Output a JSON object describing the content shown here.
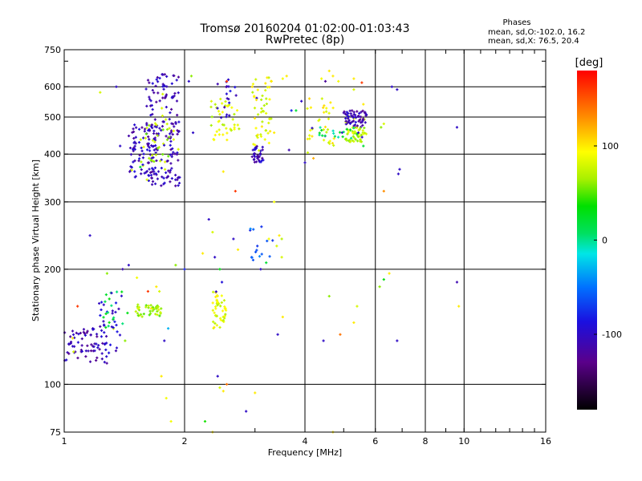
{
  "chart_data": {
    "type": "scatter",
    "title": "Tromsø 20160204 01:02:00-01:03:43",
    "subtitle": "RwPretec (8p)",
    "xlabel": "Frequency [MHz]",
    "ylabel": "Stationary phase Virtual Height [km]",
    "x_scale": "log",
    "y_scale": "log",
    "xlim": [
      1,
      16
    ],
    "ylim": [
      75,
      750
    ],
    "x_ticks": [
      1,
      2,
      4,
      6,
      8,
      10,
      16
    ],
    "x_tick_labels": [
      "1",
      "2",
      "4",
      "6",
      "8",
      "10",
      "16"
    ],
    "y_ticks": [
      75,
      100,
      200,
      300,
      400,
      500,
      600,
      750
    ],
    "y_tick_labels": [
      "75",
      "100",
      "200",
      "300",
      "400",
      "500",
      "600",
      "750"
    ],
    "grid_x": [
      2,
      4,
      6,
      8,
      10
    ],
    "grid_y": [
      100,
      200,
      300,
      400,
      500,
      600
    ],
    "stats": {
      "header": "Phases",
      "line1": "mean, sd,O:-102.0, 16.2",
      "line2": "mean, sd,X:  76.5, 20.4"
    },
    "colorbar": {
      "unit": "[deg]",
      "min": -180,
      "max": 180,
      "ticks": [
        100,
        0,
        -100
      ],
      "tick_labels": [
        "100",
        "0",
        "-100"
      ]
    },
    "clusters": [
      {
        "x_range": [
          1.0,
          1.28
        ],
        "y_range": [
          112,
          140
        ],
        "phase": -110,
        "count": 70
      },
      {
        "x_range": [
          1.22,
          1.38
        ],
        "y_range": [
          120,
          165
        ],
        "phase": -100,
        "count": 30
      },
      {
        "x_range": [
          1.25,
          1.45
        ],
        "y_range": [
          140,
          175
        ],
        "phase": 20,
        "count": 20
      },
      {
        "x_range": [
          1.5,
          1.75
        ],
        "y_range": [
          150,
          162
        ],
        "phase": 65,
        "count": 40
      },
      {
        "x_range": [
          1.45,
          1.75
        ],
        "y_range": [
          340,
          480
        ],
        "phase": -105,
        "count": 90
      },
      {
        "x_range": [
          1.6,
          1.95
        ],
        "y_range": [
          330,
          650
        ],
        "phase": -108,
        "count": 160
      },
      {
        "x_range": [
          1.55,
          1.9
        ],
        "y_range": [
          380,
          480
        ],
        "phase": 70,
        "count": 30
      },
      {
        "x_range": [
          2.35,
          2.55
        ],
        "y_range": [
          140,
          175
        ],
        "phase": 85,
        "count": 45
      },
      {
        "x_range": [
          2.3,
          2.75
        ],
        "y_range": [
          430,
          560
        ],
        "phase": 80,
        "count": 45
      },
      {
        "x_range": [
          2.5,
          2.7
        ],
        "y_range": [
          500,
          640
        ],
        "phase": -100,
        "count": 15
      },
      {
        "x_range": [
          2.95,
          3.15
        ],
        "y_range": [
          380,
          420
        ],
        "phase": -105,
        "count": 35
      },
      {
        "x_range": [
          2.95,
          3.3
        ],
        "y_range": [
          420,
          640
        ],
        "phase": 85,
        "count": 50
      },
      {
        "x_range": [
          2.9,
          3.5
        ],
        "y_range": [
          210,
          260
        ],
        "phase": -60,
        "count": 15
      },
      {
        "x_range": [
          4.0,
          4.75
        ],
        "y_range": [
          400,
          560
        ],
        "phase": 90,
        "count": 35
      },
      {
        "x_range": [
          5.0,
          5.7
        ],
        "y_range": [
          470,
          520
        ],
        "phase": -110,
        "count": 70
      },
      {
        "x_range": [
          5.0,
          5.8
        ],
        "y_range": [
          430,
          470
        ],
        "phase": 75,
        "count": 50
      },
      {
        "x_range": [
          4.3,
          5.5
        ],
        "y_range": [
          440,
          470
        ],
        "phase": 10,
        "count": 20
      }
    ],
    "points": [
      [
        1.16,
        245,
        -100
      ],
      [
        1.38,
        420,
        -100
      ],
      [
        1.35,
        600,
        -100
      ],
      [
        1.23,
        580,
        80
      ],
      [
        1.55,
        370,
        20
      ],
      [
        1.4,
        200,
        -110
      ],
      [
        1.9,
        205,
        60
      ],
      [
        2.0,
        200,
        -80
      ],
      [
        1.82,
        140,
        -30
      ],
      [
        1.75,
        105,
        100
      ],
      [
        1.8,
        92,
        90
      ],
      [
        1.85,
        80,
        90
      ],
      [
        1.52,
        190,
        90
      ],
      [
        1.62,
        175,
        160
      ],
      [
        1.7,
        180,
        100
      ],
      [
        1.73,
        175,
        80
      ],
      [
        1.65,
        158,
        100
      ],
      [
        1.78,
        130,
        -100
      ],
      [
        2.05,
        620,
        -100
      ],
      [
        2.08,
        640,
        60
      ],
      [
        2.1,
        455,
        -100
      ],
      [
        2.3,
        270,
        -100
      ],
      [
        2.35,
        250,
        80
      ],
      [
        2.22,
        220,
        100
      ],
      [
        2.38,
        215,
        -100
      ],
      [
        2.45,
        200,
        30
      ],
      [
        2.48,
        185,
        -90
      ],
      [
        2.42,
        105,
        -100
      ],
      [
        2.45,
        98,
        80
      ],
      [
        2.5,
        96,
        100
      ],
      [
        2.55,
        100,
        140
      ],
      [
        2.25,
        80,
        40
      ],
      [
        2.35,
        75,
        100
      ],
      [
        2.72,
        225,
        100
      ],
      [
        2.65,
        240,
        -100
      ],
      [
        2.55,
        620,
        160
      ],
      [
        2.42,
        610,
        -110
      ],
      [
        2.68,
        320,
        160
      ],
      [
        2.5,
        360,
        100
      ],
      [
        2.85,
        85,
        -100
      ],
      [
        3.0,
        95,
        100
      ],
      [
        3.1,
        200,
        -100
      ],
      [
        3.2,
        208,
        20
      ],
      [
        3.25,
        240,
        90
      ],
      [
        3.35,
        300,
        90
      ],
      [
        3.4,
        230,
        80
      ],
      [
        3.45,
        245,
        100
      ],
      [
        3.5,
        240,
        70
      ],
      [
        3.5,
        215,
        80
      ],
      [
        3.42,
        135,
        -100
      ],
      [
        3.52,
        150,
        100
      ],
      [
        3.3,
        620,
        100
      ],
      [
        3.6,
        640,
        100
      ],
      [
        3.52,
        630,
        90
      ],
      [
        3.35,
        455,
        100
      ],
      [
        3.65,
        410,
        -110
      ],
      [
        3.8,
        520,
        20
      ],
      [
        3.92,
        550,
        -100
      ],
      [
        3.7,
        520,
        -80
      ],
      [
        4.0,
        380,
        -100
      ],
      [
        4.2,
        390,
        120
      ],
      [
        4.4,
        630,
        90
      ],
      [
        4.5,
        620,
        -120
      ],
      [
        4.6,
        660,
        100
      ],
      [
        4.7,
        640,
        100
      ],
      [
        4.85,
        620,
        90
      ],
      [
        5.3,
        630,
        100
      ],
      [
        5.3,
        590,
        80
      ],
      [
        5.55,
        615,
        160
      ],
      [
        5.6,
        540,
        100
      ],
      [
        4.6,
        170,
        60
      ],
      [
        4.45,
        130,
        -100
      ],
      [
        4.9,
        135,
        140
      ],
      [
        5.3,
        145,
        100
      ],
      [
        5.4,
        160,
        80
      ],
      [
        4.7,
        75,
        100
      ],
      [
        5.6,
        420,
        20
      ],
      [
        6.3,
        480,
        80
      ],
      [
        6.2,
        470,
        60
      ],
      [
        6.15,
        180,
        60
      ],
      [
        6.3,
        188,
        30
      ],
      [
        6.6,
        600,
        -100
      ],
      [
        6.8,
        590,
        -100
      ],
      [
        6.9,
        365,
        -100
      ],
      [
        6.85,
        355,
        -100
      ],
      [
        6.8,
        130,
        -100
      ],
      [
        6.5,
        195,
        100
      ],
      [
        6.3,
        320,
        130
      ],
      [
        9.6,
        470,
        -100
      ],
      [
        9.6,
        185,
        -110
      ],
      [
        9.7,
        160,
        100
      ],
      [
        1.08,
        160,
        160
      ],
      [
        1.05,
        132,
        100
      ],
      [
        1.28,
        195,
        60
      ],
      [
        1.45,
        205,
        -100
      ],
      [
        1.42,
        130,
        60
      ]
    ]
  }
}
